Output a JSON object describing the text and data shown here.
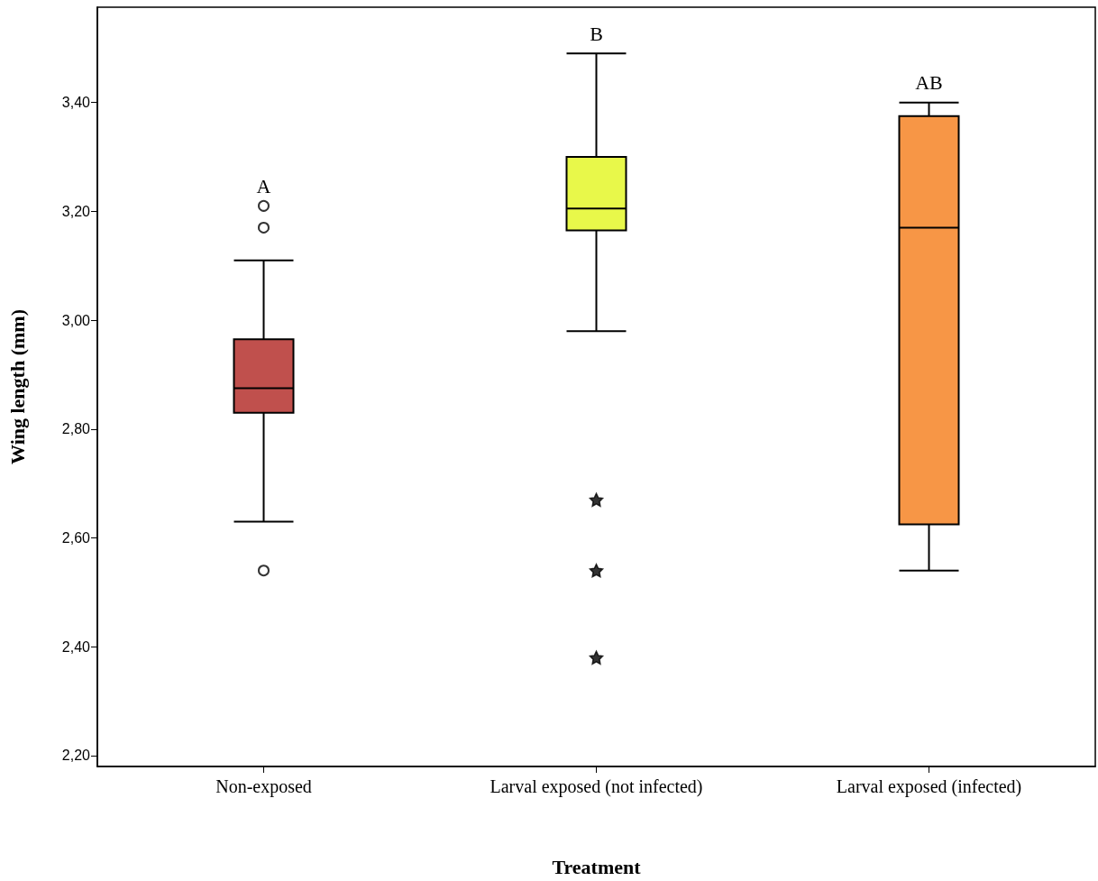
{
  "chart_data": {
    "type": "box",
    "xlabel": "Treatment",
    "ylabel": "Wing length (mm)",
    "categories": [
      "Non-exposed",
      "Larval exposed (not infected)",
      "Larval exposed (infected)"
    ],
    "colors": [
      "#c0504d",
      "#e8f84a",
      "#f79646"
    ],
    "boxes": [
      {
        "low": 2.63,
        "q1": 2.83,
        "median": 2.875,
        "q3": 2.965,
        "high": 3.11
      },
      {
        "low": 2.98,
        "q1": 3.165,
        "median": 3.205,
        "q3": 3.3,
        "high": 3.49
      },
      {
        "low": 2.54,
        "q1": 2.625,
        "median": 3.17,
        "q3": 3.375,
        "high": 3.4
      }
    ],
    "series": [
      {
        "type": "scatter",
        "marker": "circle",
        "color": "#000000",
        "x": [
          "Non-exposed",
          "Non-exposed",
          "Non-exposed"
        ],
        "values": [
          3.21,
          3.17,
          2.54
        ]
      },
      {
        "type": "scatter",
        "marker": "star",
        "color": "#000000",
        "x": [
          "Larval exposed (not infected)",
          "Larval exposed (not infected)",
          "Larval exposed (not infected)"
        ],
        "values": [
          2.67,
          2.54,
          2.38
        ]
      }
    ],
    "annotations": [
      "A",
      "B",
      "AB"
    ],
    "ylim": [
      2.18,
      3.575
    ],
    "yticks": [
      {
        "value": 2.2,
        "label": "2,20"
      },
      {
        "value": 2.4,
        "label": "2,40"
      },
      {
        "value": 2.6,
        "label": "2,60"
      },
      {
        "value": 2.8,
        "label": "2,80"
      },
      {
        "value": 3.0,
        "label": "3,00"
      },
      {
        "value": 3.2,
        "label": "3,20"
      },
      {
        "value": 3.4,
        "label": "3,40"
      }
    ],
    "grid": false
  }
}
